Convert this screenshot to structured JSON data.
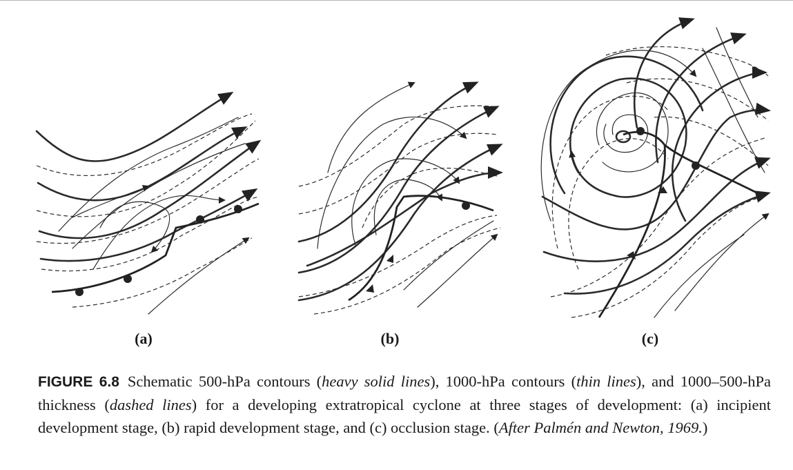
{
  "panels": [
    {
      "label": "(a)"
    },
    {
      "label": "(b)"
    },
    {
      "label": "(c)"
    }
  ],
  "caption": {
    "figure_number": "FIGURE 6.8",
    "text_1": "Schematic 500-hPa contours (",
    "heavy_term": "heavy solid lines",
    "text_2": "), 1000-hPa contours (",
    "thin_term": "thin lines",
    "text_3": "), and 1000–500-hPa thickness (",
    "dashed_term": "dashed lines",
    "text_4": ") for a developing extratropical cyclone at three stages of development: (a) incipient development stage, (b) rapid development stage, and (c) occlusion stage. (",
    "citation": "After Palmén and Newton, 1969.",
    "text_5": ")"
  }
}
